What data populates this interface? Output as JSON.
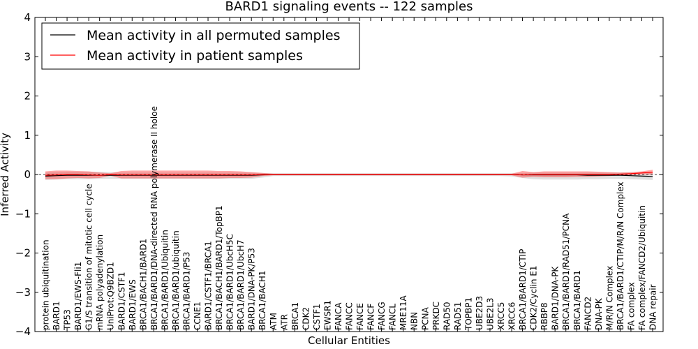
{
  "chart_data": {
    "type": "line",
    "title": "BARD1 signaling events -- 122 samples",
    "xlabel": "Cellular Entities",
    "ylabel": "Inferred Activity",
    "ylim": [
      -4,
      4
    ],
    "yticks": [
      4,
      3,
      2,
      1,
      0,
      -1,
      -2,
      -3,
      -4
    ],
    "ytick_labels": [
      "4",
      "3",
      "2",
      "1",
      "0",
      "−1",
      "−2",
      "−3",
      "−4"
    ],
    "legend": {
      "position": "top-left",
      "entries": [
        {
          "label": "Mean activity in all permuted samples",
          "color": "#000000"
        },
        {
          "label": "Mean activity in patient samples",
          "color": "#ff0000"
        }
      ]
    },
    "categories": [
      "protein ubiquitination",
      "BARD1",
      "TP53",
      "BARD1/EWS-Fli1",
      "G1/S transition of mitotic cell cycle",
      "mRNA polyadenylation",
      "UniProt:Q9BZD1",
      "BARD1/CSTF1",
      "BARD1/EWS",
      "BRCA1/BACH1/BARD1",
      "BRCA1/BARD1/DNA-directed RNA polymerase II holoe",
      "BRCA1/BARD1/Ubiquitin",
      "BRCA1/BARD1/ubiquitin",
      "BRCA1/BARD1/P53",
      "CCNE1",
      "BARD1/CSTF1/BRCA1",
      "BRCA1/BACH1/BARD1/TopBP1",
      "BRCA1/BARD1/UbcH5C",
      "BRCA1/BARD1/UbcH7",
      "BARD1/DNA-PK/P53",
      "BRCA1/BACH1",
      "ATM",
      "ATR",
      "BRCA1",
      "CDK2",
      "CSTF1",
      "EWSR1",
      "FANCA",
      "FANCC",
      "FANCE",
      "FANCF",
      "FANCG",
      "FANCL",
      "MRE11A",
      "NBN",
      "PCNA",
      "PRKDC",
      "RAD50",
      "RAD51",
      "TOPBP1",
      "UBE2D3",
      "UBE2L3",
      "XRCC5",
      "XRCC6",
      "BRCA1/BARD1/CTIP",
      "CDK2/Cyclin E1",
      "RBBP8",
      "BARD1/DNA-PK",
      "BRCA1/BARD1/RAD51/PCNA",
      "BRCA1/BARD1",
      "FANCD2",
      "DNA-PK",
      "M/R/N Complex",
      "BRCA1/BARD1/CTIP/M/R/N Complex",
      "FA complex",
      "FA complex/FANCD2/Ubiquitin",
      "DNA repair"
    ],
    "series": [
      {
        "name": "Mean activity in all permuted samples",
        "color": "#000000",
        "values": [
          -0.04,
          -0.03,
          -0.02,
          -0.02,
          -0.02,
          -0.02,
          -0.02,
          -0.02,
          -0.02,
          -0.02,
          -0.02,
          -0.02,
          -0.02,
          -0.02,
          -0.02,
          -0.02,
          -0.02,
          -0.02,
          -0.02,
          -0.02,
          -0.01,
          0,
          0,
          0,
          0,
          0,
          0,
          0,
          0,
          0,
          0,
          0,
          0,
          0,
          0,
          0,
          0,
          0,
          0,
          0,
          0,
          0,
          0,
          0,
          -0.01,
          -0.01,
          -0.01,
          -0.01,
          -0.01,
          -0.01,
          -0.02,
          -0.02,
          -0.02,
          -0.02,
          -0.03,
          -0.04,
          -0.05
        ],
        "band_upper": [
          0.05,
          0.06,
          0.07,
          0.07,
          0.07,
          0.07,
          0.06,
          0.05,
          0.05,
          0.05,
          0.05,
          0.05,
          0.05,
          0.05,
          0.05,
          0.05,
          0.05,
          0.05,
          0.05,
          0.05,
          0.04,
          0.03,
          0.03,
          0.03,
          0.03,
          0.03,
          0.03,
          0.03,
          0.03,
          0.03,
          0.03,
          0.03,
          0.03,
          0.03,
          0.03,
          0.03,
          0.03,
          0.03,
          0.03,
          0.03,
          0.03,
          0.03,
          0.03,
          0.03,
          0.04,
          0.05,
          0.05,
          0.05,
          0.05,
          0.05,
          0.05,
          0.05,
          0.05,
          0.05,
          0.05,
          0.05,
          0.05
        ],
        "band_lower": [
          -0.14,
          -0.13,
          -0.12,
          -0.12,
          -0.12,
          -0.11,
          -0.11,
          -0.11,
          -0.11,
          -0.11,
          -0.11,
          -0.11,
          -0.11,
          -0.11,
          -0.11,
          -0.11,
          -0.11,
          -0.11,
          -0.11,
          -0.11,
          -0.08,
          -0.04,
          -0.04,
          -0.04,
          -0.04,
          -0.04,
          -0.04,
          -0.04,
          -0.04,
          -0.04,
          -0.04,
          -0.04,
          -0.04,
          -0.04,
          -0.04,
          -0.04,
          -0.04,
          -0.04,
          -0.04,
          -0.04,
          -0.04,
          -0.04,
          -0.04,
          -0.05,
          -0.09,
          -0.12,
          -0.13,
          -0.13,
          -0.13,
          -0.13,
          -0.12,
          -0.12,
          -0.11,
          -0.11,
          -0.12,
          -0.13,
          -0.14
        ]
      },
      {
        "name": "Mean activity in patient samples",
        "color": "#ff0000",
        "values": [
          -0.02,
          -0.01,
          0,
          0,
          -0.01,
          -0.02,
          0,
          -0.01,
          -0.01,
          -0.01,
          -0.01,
          -0.01,
          -0.01,
          -0.01,
          -0.01,
          -0.01,
          -0.01,
          -0.01,
          -0.01,
          -0.01,
          0,
          0,
          0,
          0,
          0,
          0,
          0,
          0,
          0,
          0,
          0,
          0,
          0,
          0,
          0,
          0,
          0,
          0,
          0,
          0,
          0,
          0,
          0,
          0,
          -0.01,
          0,
          0,
          0,
          0,
          0,
          0,
          0,
          0,
          0.01,
          0.02,
          0.04,
          0.06
        ],
        "band_upper": [
          0.08,
          0.1,
          0.1,
          0.09,
          0.08,
          0.05,
          0.03,
          0.09,
          0.1,
          0.1,
          0.1,
          0.1,
          0.1,
          0.1,
          0.1,
          0.1,
          0.09,
          0.09,
          0.08,
          0.06,
          0.04,
          0.02,
          0.02,
          0.02,
          0.02,
          0.02,
          0.02,
          0.02,
          0.02,
          0.02,
          0.02,
          0.02,
          0.02,
          0.02,
          0.02,
          0.02,
          0.02,
          0.02,
          0.02,
          0.02,
          0.02,
          0.02,
          0.02,
          0.02,
          0.09,
          0.06,
          0.08,
          0.08,
          0.08,
          0.08,
          0.08,
          0.07,
          0.06,
          0.05,
          0.06,
          0.08,
          0.12
        ],
        "band_lower": [
          -0.12,
          -0.12,
          -0.1,
          -0.09,
          -0.1,
          -0.09,
          -0.03,
          -0.1,
          -0.1,
          -0.1,
          -0.1,
          -0.1,
          -0.1,
          -0.1,
          -0.1,
          -0.1,
          -0.1,
          -0.09,
          -0.09,
          -0.08,
          -0.04,
          -0.02,
          -0.02,
          -0.02,
          -0.02,
          -0.02,
          -0.02,
          -0.02,
          -0.02,
          -0.02,
          -0.02,
          -0.02,
          -0.02,
          -0.02,
          -0.02,
          -0.02,
          -0.02,
          -0.02,
          -0.02,
          -0.02,
          -0.02,
          -0.02,
          -0.02,
          -0.02,
          -0.08,
          -0.06,
          -0.07,
          -0.07,
          -0.07,
          -0.06,
          -0.06,
          -0.05,
          -0.04,
          -0.02,
          -0.01,
          0,
          0
        ]
      }
    ]
  }
}
